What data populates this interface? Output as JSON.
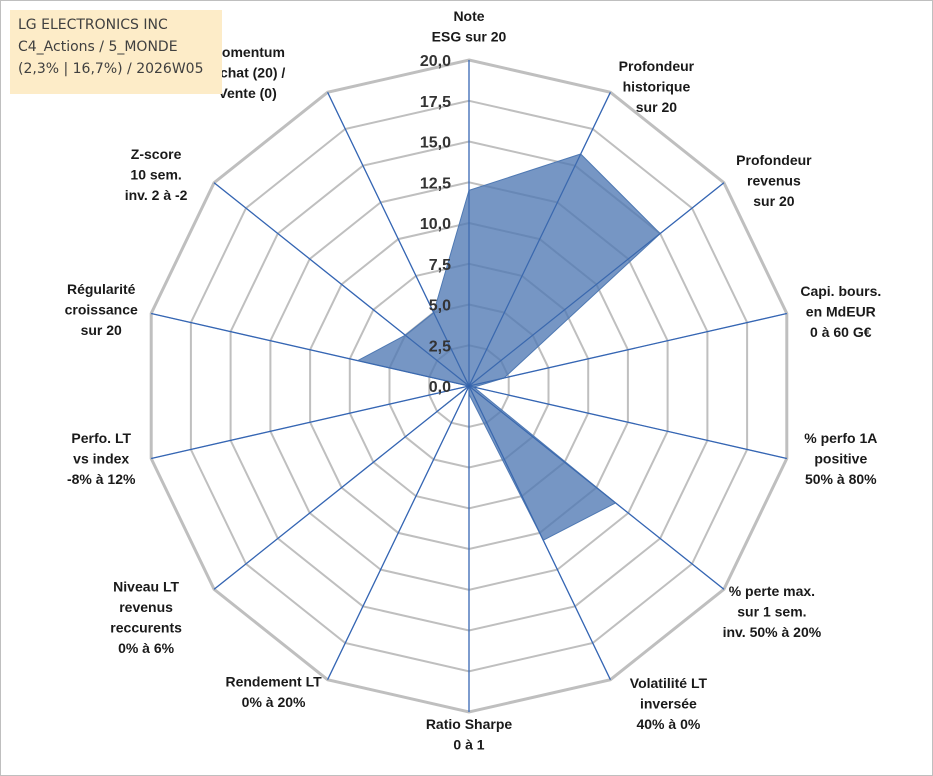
{
  "info": {
    "line1": "LG ELECTRONICS INC",
    "line2": "C4_Actions / 5_MONDE",
    "line3": "(2,3% | 16,7%) / 2026W05"
  },
  "chart_data": {
    "type": "radar",
    "scale_min": 0,
    "scale_max": 20,
    "ticks": [
      "0,0",
      "2,5",
      "5,0",
      "7,5",
      "10,0",
      "12,5",
      "15,0",
      "17,5",
      "20,0"
    ],
    "gridlines": true,
    "fill_color": "#4f79b3",
    "axis_color": "#3f6fbf",
    "grid_color": "#bfbfbf",
    "axes": [
      {
        "label": [
          "Note",
          "ESG sur 20"
        ],
        "value": 12.0
      },
      {
        "label": [
          "Profondeur",
          "historique",
          "sur 20"
        ],
        "value": 15.8
      },
      {
        "label": [
          "Profondeur",
          "revenus",
          "sur 20"
        ],
        "value": 15.0
      },
      {
        "label": [
          "Capi. bours.",
          "en MdEUR",
          "0 à 60 G€"
        ],
        "value": 2.2
      },
      {
        "label": [
          "% perfo 1A",
          "positive",
          "50% à 80%"
        ],
        "value": 0.3
      },
      {
        "label": [
          "% perte max.",
          "sur 1 sem.",
          "inv. 50% à 20%"
        ],
        "value": 11.5
      },
      {
        "label": [
          "Volatilité LT",
          "inversée",
          "40% à 0%"
        ],
        "value": 10.5
      },
      {
        "label": [
          "Ratio Sharpe",
          "0 à 1"
        ],
        "value": 0.5
      },
      {
        "label": [
          "Rendement LT",
          "0% à 20%"
        ],
        "value": 0.0
      },
      {
        "label": [
          "Niveau LT",
          "revenus",
          "reccurents",
          "0% à 6%"
        ],
        "value": 2.0
      },
      {
        "label": [
          "Perfo. LT",
          "vs index",
          "-8% à 12%"
        ],
        "value": 0.0
      },
      {
        "label": [
          "Régularité",
          "croissance",
          "sur 20"
        ],
        "value": 7.0
      },
      {
        "label": [
          "Z-score",
          "10 sem.",
          "inv. 2 à -2"
        ],
        "value": 5.0
      },
      {
        "label": [
          "Momentum",
          "Achat (20) /",
          "Vente (0)"
        ],
        "value": 5.0
      }
    ]
  }
}
